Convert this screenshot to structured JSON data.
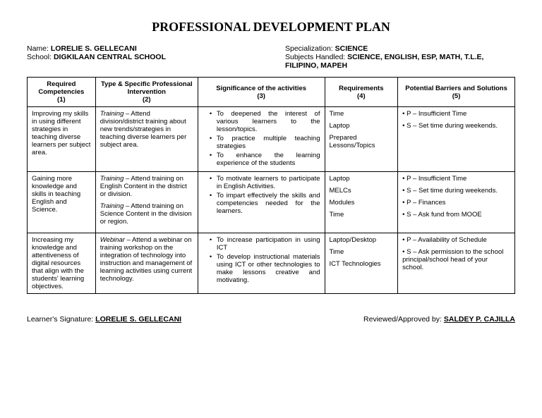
{
  "title": "PROFESSIONAL DEVELOPMENT PLAN",
  "header": {
    "name_label": "Name: ",
    "name_value": "LORELIE S. GELLECANI",
    "school_label": "School: ",
    "school_value": "DIGKILAAN CENTRAL SCHOOL",
    "spec_label": "Specialization: ",
    "spec_value": "SCIENCE",
    "subj_label": "Subjects Handled: ",
    "subj_value": "SCIENCE, ENGLISH, ESP, MATH, T.L.E, FILIPINO, MAPEH"
  },
  "columns": {
    "c1a": "Required Competencies",
    "c1b": "(1)",
    "c2a": "Type & Specific Professional Intervention",
    "c2b": "(2)",
    "c3a": "Significance of the activities",
    "c3b": "(3)",
    "c4a": "Requirements",
    "c4b": "(4)",
    "c5a": "Potential Barriers and Solutions",
    "c5b": "(5)"
  },
  "rows": [
    {
      "competency": "Improving my skills in using different strategies in teaching diverse learners per subject area.",
      "intervention": [
        {
          "lead": "Training",
          "rest": " – Attend division/district training about new trends/strategies in teaching diverse learners per subject area."
        }
      ],
      "significance": [
        "To deepened the interest of various learners to the lesson/topics.",
        "To practice multiple teaching strategies",
        "To enhance the learning experience of the students"
      ],
      "requirements": [
        "Time",
        "Laptop",
        "Prepared Lessons/Topics"
      ],
      "barriers": [
        "• P – Insufficient Time",
        "• S – Set time during weekends."
      ]
    },
    {
      "competency": "Gaining more knowledge and skills in teaching English and Science.",
      "intervention": [
        {
          "lead": "Training",
          "rest": " – Attend training on English Content in the district or division."
        },
        {
          "lead": "Training",
          "rest": " – Attend training on Science Content in the division or region."
        }
      ],
      "significance": [
        "To motivate learners to participate in English Activities.",
        "To impart effectively the skills and competencies needed for the learners."
      ],
      "requirements": [
        "Laptop",
        "MELCs",
        "Modules",
        "Time"
      ],
      "barriers": [
        "• P – Insufficient Time",
        "• S – Set time during weekends.",
        "• P – Finances",
        "• S – Ask fund from MOOE"
      ]
    },
    {
      "competency": "Increasing my knowledge and attentiveness of digital resources that align with the students' learning objectives.",
      "intervention": [
        {
          "lead": "Webinar",
          "rest": " – Attend a webinar on training workshop on the integration of technology into instruction and management of learning activities using current technology."
        }
      ],
      "significance": [
        "To increase participation in using ICT",
        "To develop instructional materials using ICT or other technologies to make lessons creative and motivating."
      ],
      "requirements": [
        "Laptop/Desktop",
        "Time",
        "ICT Technologies"
      ],
      "barriers": [
        "• P – Availability of Schedule",
        "• S – Ask permission to the school principal/school head of your school."
      ]
    }
  ],
  "footer": {
    "learner_label": "Learner's Signature: ",
    "learner_value": "LORELIE S. GELLECANI",
    "reviewer_label": "Reviewed/Approved by: ",
    "reviewer_value": "SALDEY P. CAJILLA"
  }
}
